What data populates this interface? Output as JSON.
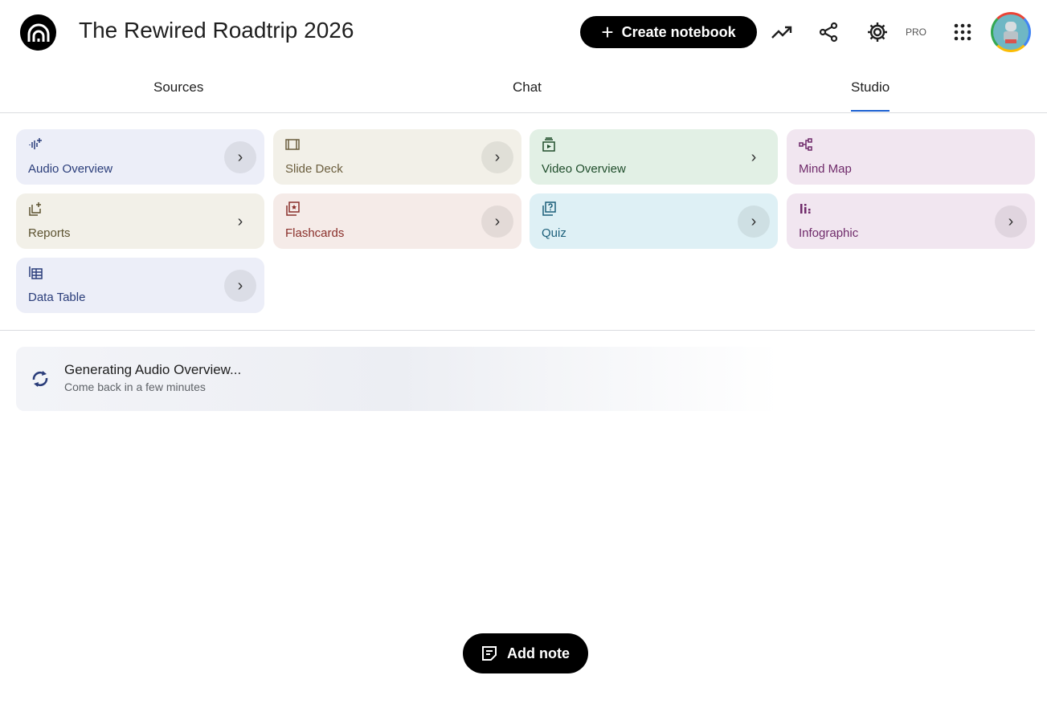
{
  "header": {
    "title": "The Rewired Roadtrip 2026",
    "create_label": "Create notebook",
    "pro_badge": "PRO",
    "icons": [
      "notebooklm-logo",
      "analytics-icon",
      "share-icon",
      "settings-icon",
      "apps-grid-icon",
      "avatar"
    ]
  },
  "tabs": [
    {
      "label": "Sources",
      "active": false
    },
    {
      "label": "Chat",
      "active": false
    },
    {
      "label": "Studio",
      "active": true
    }
  ],
  "accent": "#1a5fd0",
  "studio_tiles": [
    {
      "label": "Audio Overview",
      "icon": "audio-waveform-icon",
      "bg": "#eceef8",
      "fg": "#2a3d7a"
    },
    {
      "label": "Slide Deck",
      "icon": "slides-icon",
      "bg": "#f2f0e8",
      "fg": "#6b5e3e"
    },
    {
      "label": "Video Overview",
      "icon": "video-icon",
      "bg": "#e2f0e5",
      "fg": "#1f4d2b"
    },
    {
      "label": "Mind Map",
      "icon": "mind-map-icon",
      "bg": "#f1e6f0",
      "fg": "#6f2a6a"
    },
    {
      "label": "Reports",
      "icon": "reports-icon",
      "bg": "#f2f0e8",
      "fg": "#5c5230"
    },
    {
      "label": "Flashcards",
      "icon": "flashcards-icon",
      "bg": "#f5ebe8",
      "fg": "#8a2f2a"
    },
    {
      "label": "Quiz",
      "icon": "quiz-icon",
      "bg": "#def0f5",
      "fg": "#1b5f7a"
    },
    {
      "label": "Infographic",
      "icon": "infographic-icon",
      "bg": "#f1e6f0",
      "fg": "#6f2a6a"
    },
    {
      "label": "Data Table",
      "icon": "table-icon",
      "bg": "#eceef8",
      "fg": "#2a3d7a"
    }
  ],
  "generating": {
    "title": "Generating Audio Overview...",
    "subtitle": "Come back in a few minutes"
  },
  "add_note_label": "Add note"
}
